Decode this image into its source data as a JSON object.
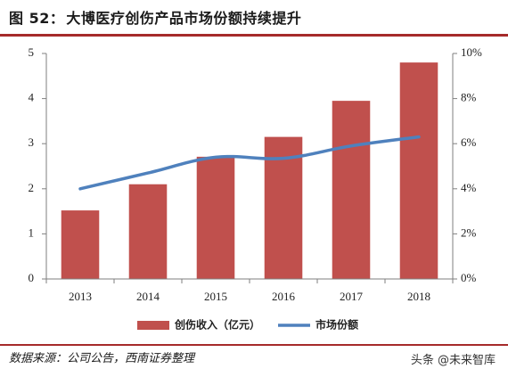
{
  "header": {
    "figure_label": "图 52：",
    "title": "大博医疗创伤产品市场份额持续提升"
  },
  "footer": {
    "source": "数据来源：公司公告，西南证券整理",
    "watermark": "头条 @未来智库"
  },
  "colors": {
    "bar": "#c0504d",
    "line": "#4f81bd",
    "accent_rule": "#a62a2a",
    "axis": "#7f7f7f"
  },
  "chart_data": {
    "type": "bar",
    "categories": [
      "2013",
      "2014",
      "2015",
      "2016",
      "2017",
      "2018"
    ],
    "series": [
      {
        "name": "创伤收入（亿元）",
        "type": "bar",
        "axis": "left",
        "values": [
          1.52,
          2.1,
          2.71,
          3.15,
          3.95,
          4.8
        ]
      },
      {
        "name": "市场份额",
        "type": "line",
        "axis": "right",
        "values": [
          4.0,
          4.7,
          5.4,
          5.35,
          5.9,
          6.3
        ]
      }
    ],
    "y_left": {
      "min": 0,
      "max": 5,
      "ticks": [
        "0",
        "1",
        "2",
        "3",
        "4",
        "5"
      ]
    },
    "y_right": {
      "min": 0,
      "max": 10,
      "ticks": [
        "0%",
        "2%",
        "4%",
        "6%",
        "8%",
        "10%"
      ]
    },
    "legend_position": "bottom",
    "grid": false
  }
}
